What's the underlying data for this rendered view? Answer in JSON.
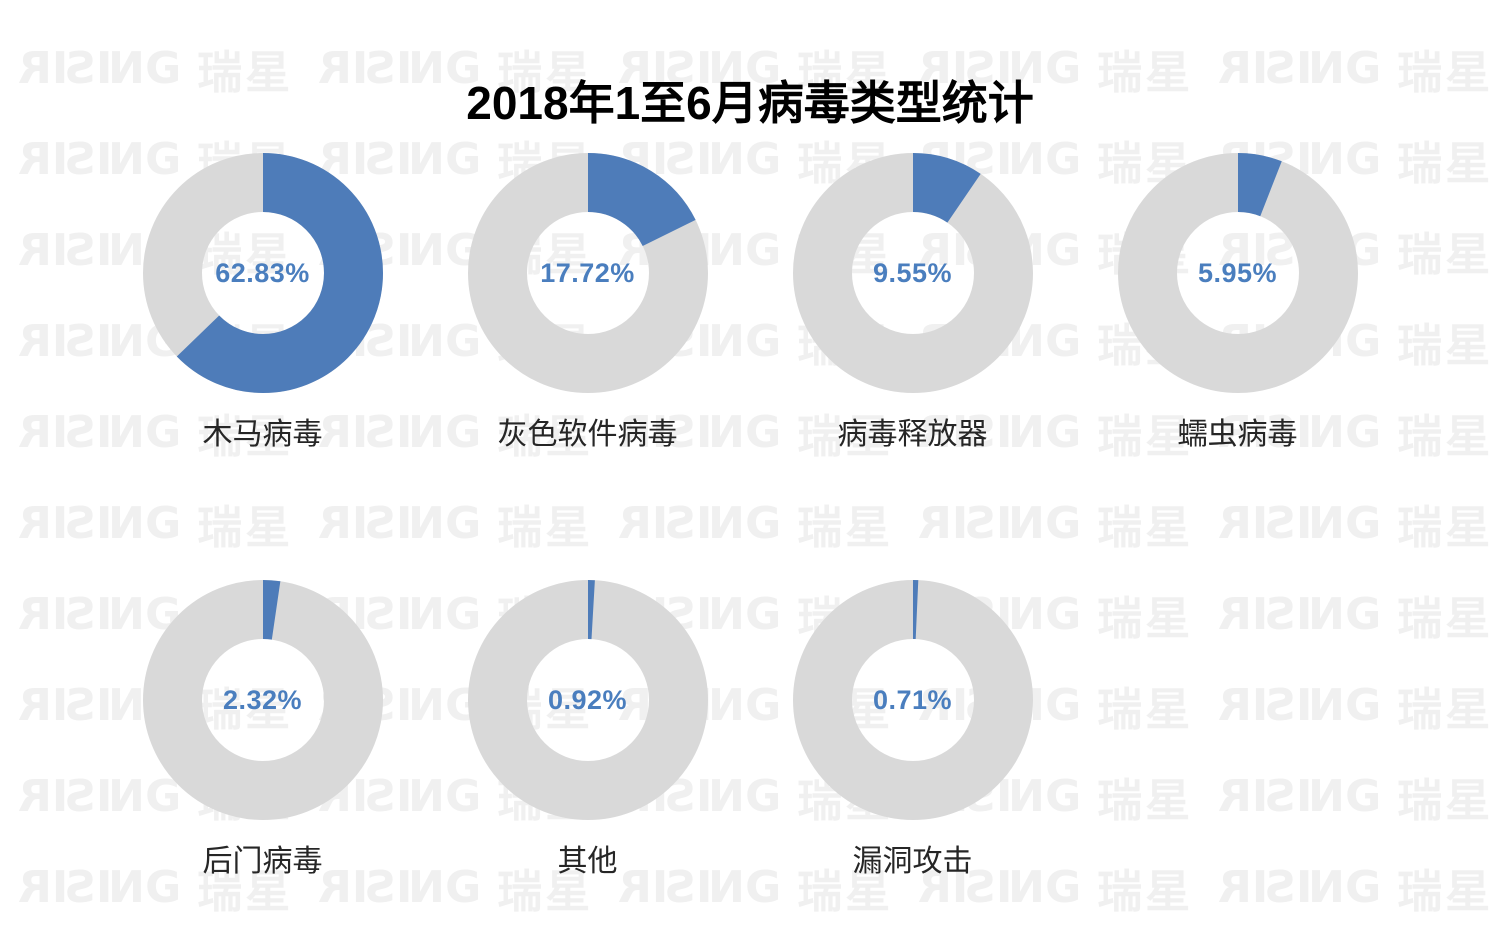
{
  "page": {
    "background": "#ffffff"
  },
  "watermark": {
    "brand_en": "RISING",
    "brand_cn": "瑞星",
    "color": "#f0f0f0"
  },
  "chart_data": {
    "type": "pie",
    "subtype": "donut_small_multiples",
    "title": "2018年1至6月病毒类型统计",
    "unit": "%",
    "categories": [
      "木马病毒",
      "灰色软件病毒",
      "病毒释放器",
      "蠕虫病毒",
      "后门病毒",
      "其他",
      "漏洞攻击"
    ],
    "values": [
      62.83,
      17.72,
      9.55,
      5.95,
      2.32,
      0.92,
      0.71
    ],
    "display_values": [
      "62.83%",
      "17.72%",
      "9.55%",
      "5.95%",
      "2.32%",
      "0.92%",
      "0.71%"
    ],
    "start_angle_deg": 0,
    "direction": "clockwise",
    "legend": "none",
    "rows": [
      4,
      3
    ],
    "colors": {
      "slice": "#4E7CB9",
      "track": "#D9D9D9",
      "value_text": "#4A7EBE",
      "title_text": "#000000",
      "category_text": "#262626"
    }
  }
}
